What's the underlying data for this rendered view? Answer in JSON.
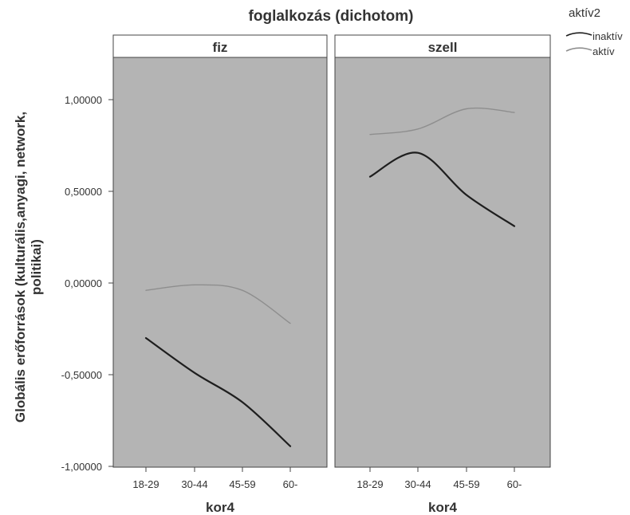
{
  "chart_data": {
    "type": "line",
    "title": "foglalkozás (dichotom)",
    "panels": [
      {
        "label": "fiz",
        "series": [
          {
            "name": "inaktív",
            "values": [
              -0.3,
              -0.49,
              -0.65,
              -0.89
            ]
          },
          {
            "name": "aktív",
            "values": [
              -0.04,
              -0.01,
              -0.04,
              -0.22
            ]
          }
        ]
      },
      {
        "label": "szell",
        "series": [
          {
            "name": "inaktív",
            "values": [
              0.58,
              0.71,
              0.48,
              0.31
            ]
          },
          {
            "name": "aktív",
            "values": [
              0.81,
              0.84,
              0.95,
              0.93
            ]
          }
        ]
      }
    ],
    "categories": [
      "18-29",
      "30-44",
      "45-59",
      "60-"
    ],
    "xlabel": "kor4",
    "ylabel_lines": [
      "Globális erőforrások (kulturális,anyagi, network,",
      "politikai)"
    ],
    "yticks": [
      "1,00000",
      "0,50000",
      "0,00000",
      "-0,50000",
      "-1,00000"
    ],
    "ytick_values": [
      1.0,
      0.5,
      0.0,
      -0.5,
      -1.0
    ],
    "ylim": [
      -1.0,
      1.2
    ],
    "legend": {
      "title": "aktív2",
      "placement": "top-right",
      "entries": [
        "inaktív",
        "aktív"
      ]
    },
    "colors": {
      "plot_bg": "#b4b4b4",
      "inaktív": "#1e1e1e",
      "aktív": "#8e8e8e"
    }
  }
}
